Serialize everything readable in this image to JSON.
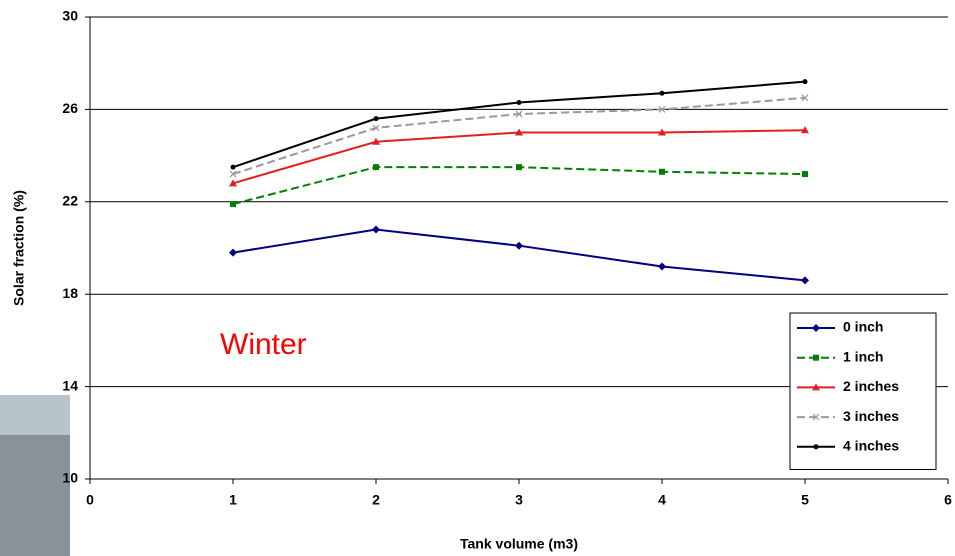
{
  "chart_data": {
    "type": "line",
    "x_label": "Tank volume (m3)",
    "y_label": "Solar fraction (%)",
    "annotation": "Winter",
    "xlim": [
      0,
      6
    ],
    "xticks": [
      0,
      1,
      2,
      3,
      4,
      5,
      6
    ],
    "ylim": [
      10,
      30
    ],
    "yticks": [
      10,
      14,
      18,
      22,
      26,
      30
    ],
    "grid": true,
    "legend": "lower right",
    "x": [
      1,
      2,
      3,
      4,
      5
    ],
    "series": [
      {
        "name": "0 inch",
        "color": "#000080",
        "marker": "diamond",
        "dash": false,
        "values": [
          19.8,
          20.8,
          20.1,
          19.2,
          18.6
        ]
      },
      {
        "name": "1 inch",
        "color": "#008000",
        "marker": "square",
        "dash": true,
        "values": [
          21.9,
          23.5,
          23.5,
          23.3,
          23.2
        ]
      },
      {
        "name": "2 inches",
        "color": "#e02020",
        "marker": "triangle",
        "dash": false,
        "values": [
          22.8,
          24.6,
          25.0,
          25.0,
          25.1
        ]
      },
      {
        "name": "3 inches",
        "color": "#999999",
        "marker": "x",
        "dash": true,
        "values": [
          23.2,
          25.2,
          25.8,
          26.0,
          26.5
        ]
      },
      {
        "name": "4 inches",
        "color": "#000000",
        "marker": "circle",
        "dash": false,
        "values": [
          23.5,
          25.6,
          26.3,
          26.7,
          27.2
        ]
      }
    ]
  }
}
